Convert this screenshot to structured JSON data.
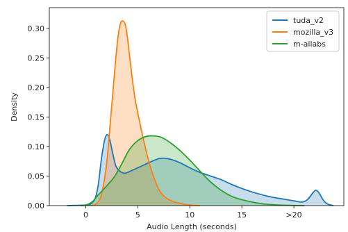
{
  "chart_data": {
    "type": "area",
    "title": "",
    "xlabel": "Audio Length (seconds)",
    "ylabel": "Density",
    "xlim": [
      -3.5,
      24.8
    ],
    "ylim": [
      0,
      0.335
    ],
    "grid": false,
    "legend_position": "top-right",
    "x_ticks": [
      {
        "value": 0,
        "label": "0"
      },
      {
        "value": 5,
        "label": "5"
      },
      {
        "value": 10,
        "label": "10"
      },
      {
        "value": 15,
        "label": "15"
      },
      {
        "value": 20,
        "label": ">20"
      }
    ],
    "y_ticks": [
      {
        "value": 0.0,
        "label": "0.00"
      },
      {
        "value": 0.05,
        "label": "0.05"
      },
      {
        "value": 0.1,
        "label": "0.10"
      },
      {
        "value": 0.15,
        "label": "0.15"
      },
      {
        "value": 0.2,
        "label": "0.20"
      },
      {
        "value": 0.25,
        "label": "0.25"
      },
      {
        "value": 0.3,
        "label": "0.30"
      }
    ],
    "series": [
      {
        "name": "tuda_v2",
        "color": "#1f77b4",
        "points": [
          [
            -1.8,
            0
          ],
          [
            0,
            0.001
          ],
          [
            0.5,
            0.003
          ],
          [
            0.9,
            0.012
          ],
          [
            1.2,
            0.035
          ],
          [
            1.5,
            0.078
          ],
          [
            1.8,
            0.11
          ],
          [
            2.05,
            0.12
          ],
          [
            2.3,
            0.112
          ],
          [
            2.6,
            0.088
          ],
          [
            2.9,
            0.067
          ],
          [
            3.3,
            0.058
          ],
          [
            3.8,
            0.055
          ],
          [
            4.5,
            0.06
          ],
          [
            5.5,
            0.068
          ],
          [
            6.5,
            0.076
          ],
          [
            7.2,
            0.08
          ],
          [
            8,
            0.079
          ],
          [
            9,
            0.073
          ],
          [
            10,
            0.064
          ],
          [
            11,
            0.056
          ],
          [
            12,
            0.05
          ],
          [
            13,
            0.044
          ],
          [
            14,
            0.036
          ],
          [
            15,
            0.029
          ],
          [
            16,
            0.023
          ],
          [
            17,
            0.018
          ],
          [
            18,
            0.014
          ],
          [
            19,
            0.011
          ],
          [
            20,
            0.008
          ],
          [
            20.8,
            0.006
          ],
          [
            21.3,
            0.01
          ],
          [
            21.8,
            0.021
          ],
          [
            22.1,
            0.026
          ],
          [
            22.4,
            0.022
          ],
          [
            22.8,
            0.01
          ],
          [
            23.2,
            0.003
          ],
          [
            23.8,
            0
          ]
        ]
      },
      {
        "name": "mozilla_v3",
        "color": "#ff7f0e",
        "points": [
          [
            0.5,
            0
          ],
          [
            1,
            0.003
          ],
          [
            1.5,
            0.018
          ],
          [
            2,
            0.07
          ],
          [
            2.5,
            0.17
          ],
          [
            3,
            0.27
          ],
          [
            3.3,
            0.306
          ],
          [
            3.6,
            0.312
          ],
          [
            3.9,
            0.298
          ],
          [
            4.3,
            0.24
          ],
          [
            4.7,
            0.185
          ],
          [
            5.2,
            0.14
          ],
          [
            5.7,
            0.1
          ],
          [
            6.2,
            0.066
          ],
          [
            6.8,
            0.036
          ],
          [
            7.3,
            0.02
          ],
          [
            8,
            0.01
          ],
          [
            9,
            0.004
          ],
          [
            10,
            0.001
          ],
          [
            11,
            0
          ]
        ]
      },
      {
        "name": "m-ailabs",
        "color": "#2ca02c",
        "points": [
          [
            -0.5,
            0
          ],
          [
            0,
            0.001
          ],
          [
            0.6,
            0.006
          ],
          [
            1.2,
            0.018
          ],
          [
            2,
            0.033
          ],
          [
            2.8,
            0.05
          ],
          [
            3.5,
            0.072
          ],
          [
            4.2,
            0.095
          ],
          [
            5,
            0.11
          ],
          [
            5.8,
            0.117
          ],
          [
            6.5,
            0.118
          ],
          [
            7.2,
            0.116
          ],
          [
            8,
            0.108
          ],
          [
            9,
            0.094
          ],
          [
            10,
            0.077
          ],
          [
            11,
            0.058
          ],
          [
            12,
            0.04
          ],
          [
            13,
            0.026
          ],
          [
            14,
            0.016
          ],
          [
            15,
            0.01
          ],
          [
            16,
            0.006
          ],
          [
            17,
            0.003
          ],
          [
            18,
            0.0015
          ],
          [
            19,
            0.0007
          ],
          [
            20,
            0.0003
          ],
          [
            21,
            0
          ]
        ]
      }
    ]
  }
}
